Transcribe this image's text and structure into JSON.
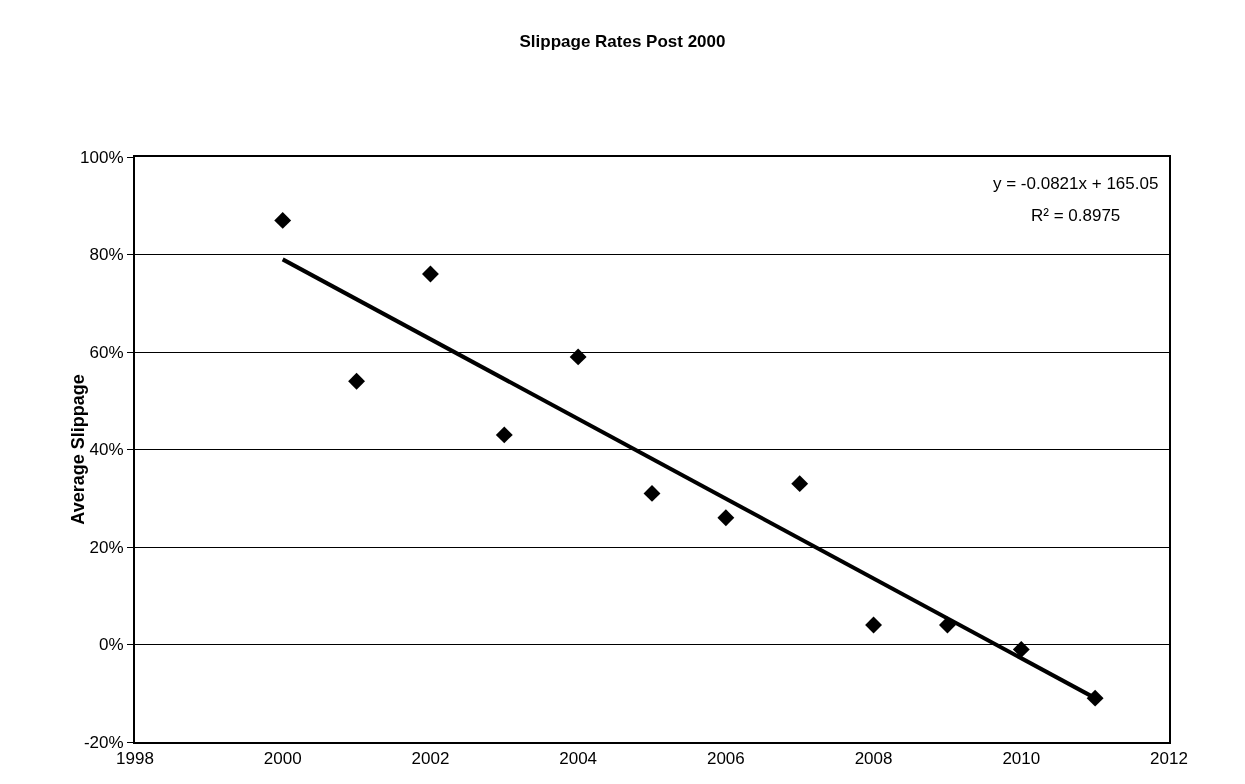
{
  "chart_data": {
    "type": "scatter",
    "title": "Slippage Rates Post 2000",
    "ylabel": "Average Slippage",
    "x": [
      2000,
      2001,
      2002,
      2003,
      2004,
      2005,
      2006,
      2007,
      2008,
      2009,
      2010,
      2011
    ],
    "series": [
      {
        "color": "#000000",
        "marker": "diamond",
        "values": [
          87,
          54,
          76,
          43,
          59,
          31,
          26,
          33,
          4,
          4,
          -1,
          -11
        ]
      },
      {
        "type": "line",
        "color": "#000000",
        "marker": "none",
        "line_style": "solid",
        "x": [
          2000,
          2011
        ],
        "values": [
          79,
          -11
        ]
      }
    ],
    "annotations": [
      "y = -0.0821x + 165.05",
      "R² = 0.8975"
    ],
    "xlim": [
      1998,
      2012
    ],
    "xticks": [
      1998,
      2000,
      2002,
      2004,
      2006,
      2008,
      2010,
      2012
    ],
    "ylim": [
      -20,
      100
    ],
    "yticks": [
      {
        "value": -20,
        "label": "-20%"
      },
      {
        "value": 0,
        "label": "0%"
      },
      {
        "value": 20,
        "label": "20%"
      },
      {
        "value": 40,
        "label": "40%"
      },
      {
        "value": 60,
        "label": "60%"
      },
      {
        "value": 80,
        "label": "80%"
      },
      {
        "value": 100,
        "label": "100%"
      }
    ],
    "grid": "y"
  }
}
